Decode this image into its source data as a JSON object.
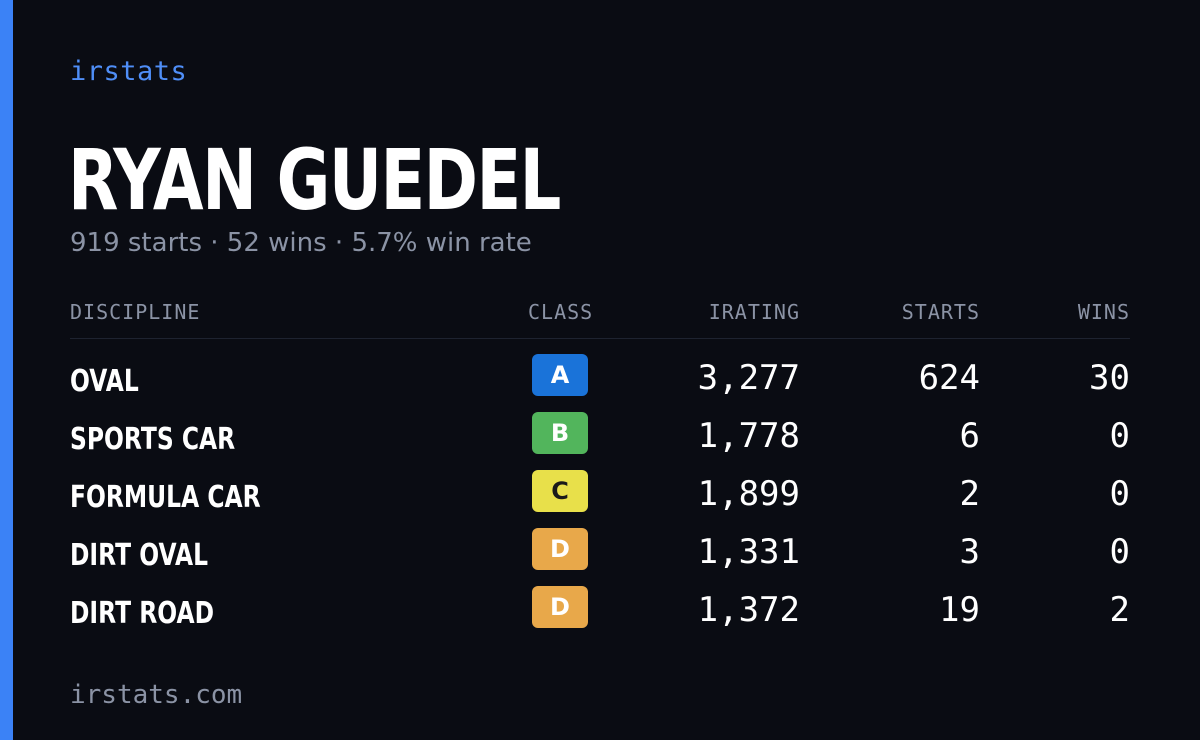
{
  "brand": "irstats",
  "player": {
    "name": "RYAN GUEDEL",
    "summary": "919 starts · 52 wins · 5.7% win rate"
  },
  "table": {
    "headers": {
      "discipline": "DISCIPLINE",
      "class": "CLASS",
      "irating": "IRATING",
      "starts": "STARTS",
      "wins": "WINS"
    },
    "rows": [
      {
        "discipline": "OVAL",
        "class": "A",
        "class_bg": "#1a73d9",
        "class_fg": "#ffffff",
        "irating": "3,277",
        "starts": "624",
        "wins": "30"
      },
      {
        "discipline": "SPORTS CAR",
        "class": "B",
        "class_bg": "#52b55c",
        "class_fg": "#ffffff",
        "irating": "1,778",
        "starts": "6",
        "wins": "0"
      },
      {
        "discipline": "FORMULA CAR",
        "class": "C",
        "class_bg": "#e8e04a",
        "class_fg": "#1a1a1a",
        "irating": "1,899",
        "starts": "2",
        "wins": "0"
      },
      {
        "discipline": "DIRT OVAL",
        "class": "D",
        "class_bg": "#e8a84a",
        "class_fg": "#ffffff",
        "irating": "1,331",
        "starts": "3",
        "wins": "0"
      },
      {
        "discipline": "DIRT ROAD",
        "class": "D",
        "class_bg": "#e8a84a",
        "class_fg": "#ffffff",
        "irating": "1,372",
        "starts": "19",
        "wins": "2"
      }
    ]
  },
  "footer": {
    "url": "irstats.com"
  },
  "colors": {
    "background": "#0a0c13",
    "accent": "#3b82f6",
    "brand_text": "#4f8ef7",
    "muted_text": "#8b93a5"
  }
}
